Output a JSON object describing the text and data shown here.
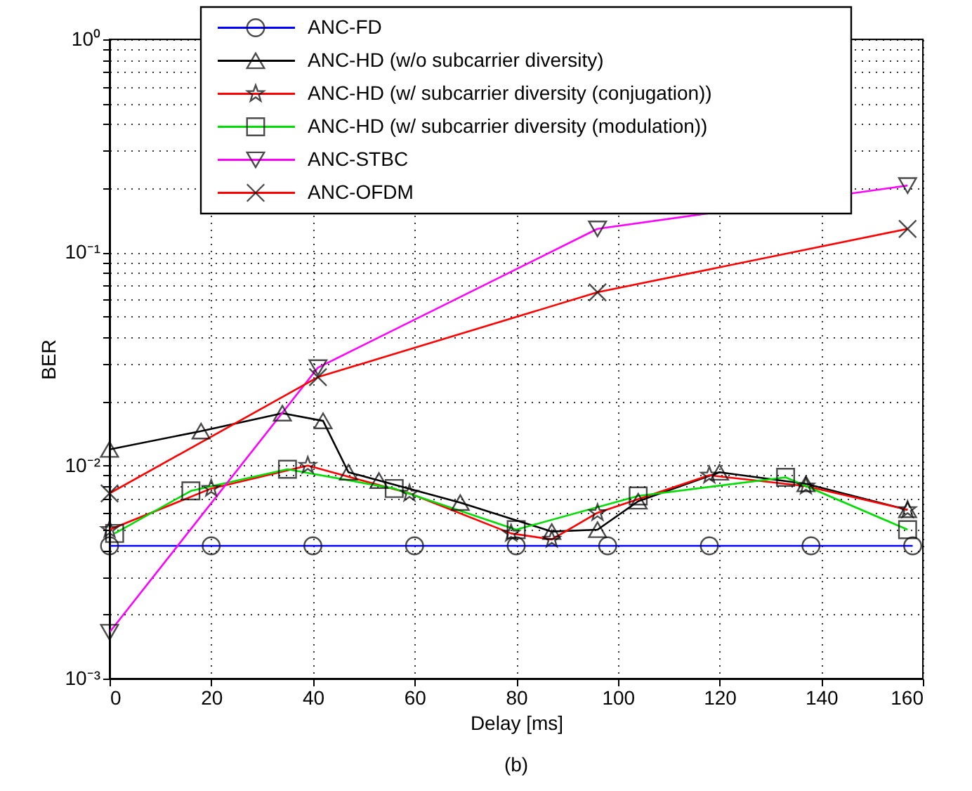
{
  "chart_data": {
    "type": "line",
    "xlabel": "Delay [ms]",
    "ylabel": "BER",
    "log": "y",
    "grid": true,
    "legend": "top",
    "line_style": "solid",
    "annotations": [
      "(b)"
    ],
    "xlim": [
      0,
      160
    ],
    "xticks": [
      0,
      20,
      40,
      60,
      80,
      100,
      120,
      140,
      160
    ],
    "ylim": [
      0.001,
      1
    ],
    "yticks": [
      {
        "value": 0.001,
        "label": "10⁻³"
      },
      {
        "value": 0.002,
        "label": null
      },
      {
        "value": 0.003,
        "label": null
      },
      {
        "value": 0.004,
        "label": null
      },
      {
        "value": 0.005,
        "label": null
      },
      {
        "value": 0.006,
        "label": null
      },
      {
        "value": 0.007,
        "label": null
      },
      {
        "value": 0.008,
        "label": null
      },
      {
        "value": 0.009,
        "label": null
      },
      {
        "value": 0.01,
        "label": "10⁻²"
      },
      {
        "value": 0.02,
        "label": null
      },
      {
        "value": 0.03,
        "label": null
      },
      {
        "value": 0.04,
        "label": null
      },
      {
        "value": 0.05,
        "label": null
      },
      {
        "value": 0.06,
        "label": null
      },
      {
        "value": 0.07,
        "label": null
      },
      {
        "value": 0.08,
        "label": null
      },
      {
        "value": 0.09,
        "label": null
      },
      {
        "value": 0.1,
        "label": "10⁻¹"
      },
      {
        "value": 0.2,
        "label": null
      },
      {
        "value": 0.3,
        "label": null
      },
      {
        "value": 0.4,
        "label": null
      },
      {
        "value": 0.5,
        "label": null
      },
      {
        "value": 0.6,
        "label": null
      },
      {
        "value": 0.7,
        "label": null
      },
      {
        "value": 0.8,
        "label": null
      },
      {
        "value": 0.9,
        "label": null
      },
      {
        "value": 1,
        "label": "10⁰"
      }
    ],
    "series": [
      {
        "name": "ANC-FD",
        "color": "#0000ff",
        "marker": "circle",
        "x": [
          0,
          20,
          40,
          60,
          80,
          98,
          118,
          138,
          158
        ],
        "values": [
          0.0042,
          0.0042,
          0.0042,
          0.0042,
          0.0042,
          0.0042,
          0.0042,
          0.0042,
          0.0042
        ]
      },
      {
        "name": "ANC-HD (w/o subcarrier diversity)",
        "color": "#000000",
        "marker": "triangle",
        "x": [
          0,
          18,
          34,
          42,
          47,
          53,
          69,
          87,
          96,
          104,
          120,
          137,
          157
        ],
        "values": [
          0.0119,
          0.0145,
          0.0176,
          0.0162,
          0.0093,
          0.0085,
          0.0067,
          0.0049,
          0.005,
          0.0068,
          0.0093,
          0.0082,
          0.0062
        ]
      },
      {
        "name": "ANC-HD (w/ subcarrier diversity (conjugation))",
        "color": "#ff0000",
        "marker": "star",
        "x": [
          0,
          20,
          39,
          59,
          79,
          87,
          96,
          118,
          137,
          157
        ],
        "values": [
          0.005,
          0.0078,
          0.01,
          0.0074,
          0.0048,
          0.0045,
          0.006,
          0.009,
          0.008,
          0.0062
        ]
      },
      {
        "name": "ANC-HD (w/ subcarrier diversity (modulation))",
        "color": "#00dd00",
        "marker": "square",
        "x": [
          1,
          16,
          35,
          56,
          80,
          104,
          133,
          157
        ],
        "values": [
          0.0048,
          0.0076,
          0.0096,
          0.0078,
          0.005,
          0.0072,
          0.0088,
          0.005
        ]
      },
      {
        "name": "ANC-STBC",
        "color": "#ff00ff",
        "marker": "triangle_down",
        "x": [
          0,
          41,
          96,
          157
        ],
        "values": [
          0.00165,
          0.0288,
          0.129,
          0.206
        ]
      },
      {
        "name": "ANC-OFDM",
        "color": "#ff0000",
        "marker": "cross",
        "x": [
          0,
          41,
          96,
          157
        ],
        "values": [
          0.0074,
          0.026,
          0.065,
          0.129
        ]
      }
    ]
  }
}
